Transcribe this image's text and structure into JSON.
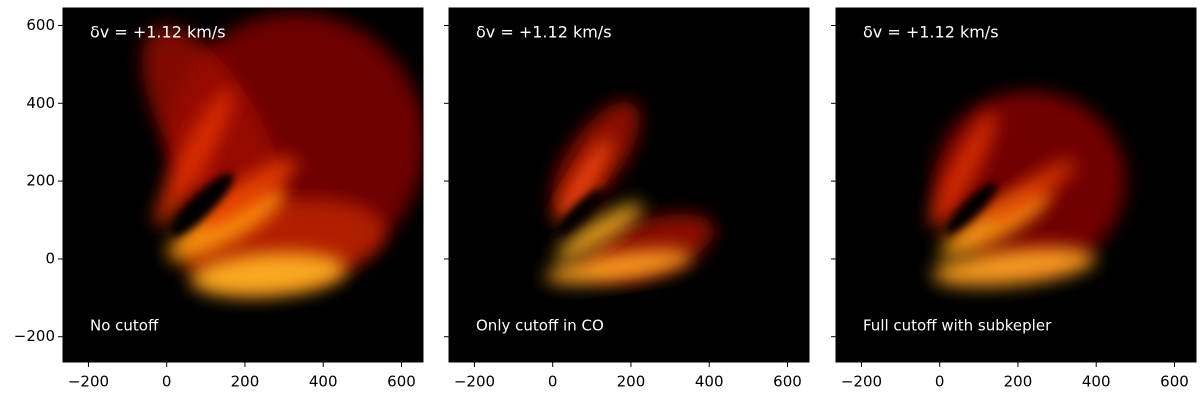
{
  "chart_data": [
    {
      "type": "image",
      "annotation": "δv = +1.12 km/s",
      "label": "No cutoff",
      "xlim": [
        -265,
        655
      ],
      "ylim": [
        -265,
        645
      ],
      "xticks": [
        {
          "value": -200,
          "label": "−200"
        },
        0,
        200,
        400,
        600
      ],
      "yticks": [
        {
          "value": -200,
          "label": "−200"
        },
        0,
        200,
        400,
        600
      ]
    },
    {
      "type": "image",
      "annotation": "δv = +1.12 km/s",
      "label": "Only cutoff in CO",
      "xlim": [
        -265,
        655
      ],
      "ylim": [
        -265,
        645
      ],
      "xticks": [
        {
          "value": -200,
          "label": "−200"
        },
        0,
        200,
        400,
        600
      ],
      "yticks": [
        -200,
        0,
        200,
        400,
        600
      ]
    },
    {
      "type": "image",
      "annotation": "δv = +1.12 km/s",
      "label": "Full cutoff with subkepler",
      "xlim": [
        -265,
        655
      ],
      "ylim": [
        -265,
        645
      ],
      "xticks": [
        {
          "value": -200,
          "label": "−200"
        },
        0,
        200,
        400,
        600
      ],
      "yticks": [
        -200,
        0,
        200,
        400,
        600
      ]
    }
  ]
}
